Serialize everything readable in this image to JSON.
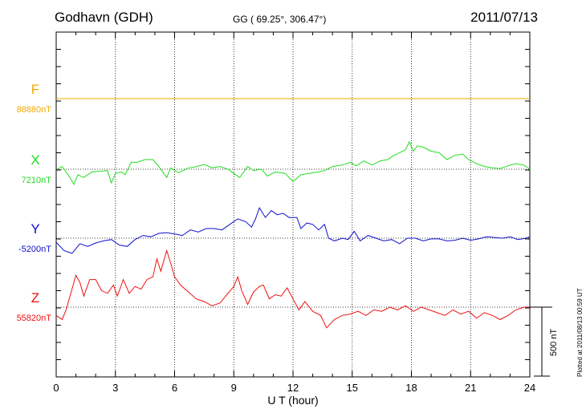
{
  "header": {
    "station": "Godhavn (GDH)",
    "coords": "GG ( 69.25°, 306.47°)",
    "date": "2011/07/13"
  },
  "footer": {
    "plotted": "Plotted at 2011/08/13 00:59 UT"
  },
  "chart_data": {
    "type": "line",
    "xlabel": "U T (hour)",
    "xlim": [
      0,
      24
    ],
    "xticks": [
      0,
      3,
      6,
      9,
      12,
      15,
      18,
      21,
      24
    ],
    "scale_bar": {
      "label": "500 nT",
      "value_nT": 500
    },
    "grid": true,
    "series": [
      {
        "name": "F",
        "baseline_label": "88880nT",
        "color": "#f2a900",
        "points": [
          [
            0,
            0
          ],
          [
            24,
            0
          ]
        ]
      },
      {
        "name": "X",
        "baseline_label": "7210nT",
        "color": "#22dd22",
        "points": [
          [
            0,
            -5
          ],
          [
            0.3,
            20
          ],
          [
            0.6,
            -40
          ],
          [
            0.9,
            -110
          ],
          [
            1.1,
            -40
          ],
          [
            1.4,
            -60
          ],
          [
            1.8,
            -20
          ],
          [
            2.2,
            -15
          ],
          [
            2.6,
            -10
          ],
          [
            2.8,
            -100
          ],
          [
            3.0,
            -30
          ],
          [
            3.3,
            -20
          ],
          [
            3.5,
            -40
          ],
          [
            3.8,
            50
          ],
          [
            4.1,
            50
          ],
          [
            4.5,
            70
          ],
          [
            4.9,
            70
          ],
          [
            5.2,
            20
          ],
          [
            5.6,
            -60
          ],
          [
            5.8,
            10
          ],
          [
            6.2,
            -25
          ],
          [
            6.7,
            10
          ],
          [
            7.0,
            15
          ],
          [
            7.5,
            35
          ],
          [
            7.9,
            10
          ],
          [
            8.3,
            20
          ],
          [
            8.7,
            0
          ],
          [
            9.0,
            -30
          ],
          [
            9.3,
            -60
          ],
          [
            9.7,
            20
          ],
          [
            10.0,
            -10
          ],
          [
            10.4,
            0
          ],
          [
            10.7,
            -50
          ],
          [
            11.1,
            -20
          ],
          [
            11.6,
            -30
          ],
          [
            12.0,
            -90
          ],
          [
            12.4,
            -40
          ],
          [
            12.8,
            -30
          ],
          [
            13.3,
            -20
          ],
          [
            13.6,
            -10
          ],
          [
            14.0,
            20
          ],
          [
            14.5,
            30
          ],
          [
            14.9,
            50
          ],
          [
            15.2,
            25
          ],
          [
            15.6,
            60
          ],
          [
            16.0,
            30
          ],
          [
            16.4,
            60
          ],
          [
            16.8,
            70
          ],
          [
            17.1,
            100
          ],
          [
            17.4,
            120
          ],
          [
            17.7,
            140
          ],
          [
            17.9,
            200
          ],
          [
            18.1,
            130
          ],
          [
            18.3,
            170
          ],
          [
            18.6,
            160
          ],
          [
            19.0,
            130
          ],
          [
            19.4,
            120
          ],
          [
            19.8,
            70
          ],
          [
            20.2,
            100
          ],
          [
            20.6,
            110
          ],
          [
            20.9,
            70
          ],
          [
            21.3,
            40
          ],
          [
            21.7,
            20
          ],
          [
            22.1,
            10
          ],
          [
            22.5,
            5
          ],
          [
            22.9,
            25
          ],
          [
            23.3,
            40
          ],
          [
            23.7,
            30
          ],
          [
            24.0,
            0
          ]
        ]
      },
      {
        "name": "Y",
        "baseline_label": "-5200nT",
        "color": "#1010cc",
        "points": [
          [
            0,
            -30
          ],
          [
            0.4,
            -90
          ],
          [
            0.8,
            -110
          ],
          [
            1.2,
            -40
          ],
          [
            1.6,
            -60
          ],
          [
            2.0,
            -35
          ],
          [
            2.4,
            -20
          ],
          [
            2.8,
            -10
          ],
          [
            3.2,
            -50
          ],
          [
            3.6,
            -60
          ],
          [
            4.0,
            -10
          ],
          [
            4.4,
            20
          ],
          [
            4.8,
            10
          ],
          [
            5.2,
            35
          ],
          [
            5.6,
            40
          ],
          [
            6.0,
            30
          ],
          [
            6.4,
            20
          ],
          [
            6.8,
            60
          ],
          [
            7.2,
            45
          ],
          [
            7.6,
            70
          ],
          [
            8.0,
            70
          ],
          [
            8.4,
            60
          ],
          [
            8.8,
            100
          ],
          [
            9.2,
            140
          ],
          [
            9.6,
            120
          ],
          [
            9.9,
            80
          ],
          [
            10.1,
            140
          ],
          [
            10.3,
            220
          ],
          [
            10.6,
            150
          ],
          [
            10.9,
            200
          ],
          [
            11.2,
            170
          ],
          [
            11.5,
            180
          ],
          [
            11.8,
            150
          ],
          [
            12.2,
            150
          ],
          [
            12.4,
            70
          ],
          [
            12.7,
            110
          ],
          [
            13.0,
            100
          ],
          [
            13.3,
            60
          ],
          [
            13.6,
            100
          ],
          [
            13.8,
            0
          ],
          [
            14.1,
            -20
          ],
          [
            14.5,
            0
          ],
          [
            14.8,
            -10
          ],
          [
            15.1,
            50
          ],
          [
            15.4,
            -20
          ],
          [
            15.8,
            20
          ],
          [
            16.2,
            0
          ],
          [
            16.6,
            -20
          ],
          [
            17.0,
            -10
          ],
          [
            17.4,
            -40
          ],
          [
            17.8,
            0
          ],
          [
            18.2,
            0
          ],
          [
            18.6,
            -20
          ],
          [
            19.0,
            -5
          ],
          [
            19.4,
            -5
          ],
          [
            19.8,
            -20
          ],
          [
            20.2,
            -15
          ],
          [
            20.6,
            0
          ],
          [
            21.0,
            -15
          ],
          [
            21.4,
            -5
          ],
          [
            21.8,
            10
          ],
          [
            22.2,
            5
          ],
          [
            22.6,
            0
          ],
          [
            23.0,
            10
          ],
          [
            23.4,
            -10
          ],
          [
            23.8,
            0
          ],
          [
            24.0,
            10
          ]
        ]
      },
      {
        "name": "Z",
        "baseline_label": "55820nT",
        "color": "#ee1111",
        "points": [
          [
            0,
            -60
          ],
          [
            0.3,
            -90
          ],
          [
            0.5,
            -20
          ],
          [
            0.8,
            130
          ],
          [
            1.0,
            230
          ],
          [
            1.2,
            180
          ],
          [
            1.4,
            80
          ],
          [
            1.7,
            200
          ],
          [
            2.0,
            200
          ],
          [
            2.3,
            120
          ],
          [
            2.6,
            100
          ],
          [
            2.9,
            160
          ],
          [
            3.1,
            80
          ],
          [
            3.4,
            200
          ],
          [
            3.7,
            100
          ],
          [
            4.0,
            150
          ],
          [
            4.3,
            130
          ],
          [
            4.6,
            200
          ],
          [
            4.9,
            220
          ],
          [
            5.1,
            350
          ],
          [
            5.3,
            260
          ],
          [
            5.6,
            410
          ],
          [
            5.8,
            320
          ],
          [
            6.0,
            220
          ],
          [
            6.3,
            160
          ],
          [
            6.7,
            110
          ],
          [
            7.1,
            60
          ],
          [
            7.5,
            40
          ],
          [
            7.9,
            10
          ],
          [
            8.3,
            30
          ],
          [
            8.7,
            100
          ],
          [
            9.0,
            150
          ],
          [
            9.2,
            220
          ],
          [
            9.4,
            120
          ],
          [
            9.7,
            20
          ],
          [
            10.0,
            110
          ],
          [
            10.3,
            150
          ],
          [
            10.5,
            160
          ],
          [
            10.8,
            60
          ],
          [
            11.1,
            90
          ],
          [
            11.4,
            80
          ],
          [
            11.7,
            140
          ],
          [
            12.0,
            60
          ],
          [
            12.3,
            -20
          ],
          [
            12.6,
            40
          ],
          [
            13.0,
            -30
          ],
          [
            13.4,
            -60
          ],
          [
            13.7,
            -150
          ],
          [
            14.1,
            -90
          ],
          [
            14.5,
            -60
          ],
          [
            14.9,
            -50
          ],
          [
            15.3,
            -30
          ],
          [
            15.7,
            -60
          ],
          [
            16.1,
            -20
          ],
          [
            16.5,
            -30
          ],
          [
            16.9,
            0
          ],
          [
            17.3,
            -20
          ],
          [
            17.7,
            10
          ],
          [
            18.1,
            -30
          ],
          [
            18.5,
            0
          ],
          [
            18.9,
            -20
          ],
          [
            19.3,
            -40
          ],
          [
            19.7,
            -60
          ],
          [
            20.1,
            -20
          ],
          [
            20.5,
            -50
          ],
          [
            20.9,
            -30
          ],
          [
            21.3,
            -80
          ],
          [
            21.7,
            -40
          ],
          [
            22.1,
            -60
          ],
          [
            22.5,
            -90
          ],
          [
            22.9,
            -60
          ],
          [
            23.3,
            -20
          ],
          [
            23.7,
            0
          ],
          [
            24.0,
            0
          ]
        ]
      }
    ]
  }
}
